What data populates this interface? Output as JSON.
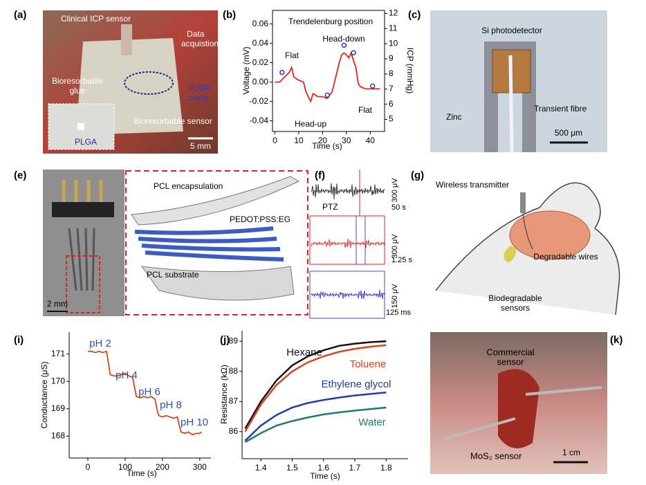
{
  "panels": {
    "a": {
      "label": "(a)",
      "texts": [
        "Clinical ICP sensor",
        "Data",
        "acquistion",
        "Bioresorbable",
        "glue",
        "PLGA",
        "cover",
        "Bioresorbable sensor",
        "PLGA",
        "5 mm"
      ]
    },
    "c": {
      "label": "(c)",
      "texts": [
        "Si photodetector",
        "Transient fibre",
        "Zinc",
        "500 μm"
      ]
    },
    "e": {
      "label": "(e)",
      "texts": [
        "PCL encapsulation",
        "PEDOT:PSS:EG",
        "PCL substrate",
        "2 mm"
      ]
    },
    "f": {
      "label": "(f)",
      "texts": [
        "PTZ",
        "300 μV",
        "50 s",
        "300 μV",
        "1.25 s",
        "150 μV",
        "125 ms"
      ]
    },
    "g": {
      "label": "(g)",
      "texts": [
        "Wireless transmitter",
        "Degradable wires",
        "Biodegradable",
        "sensors"
      ]
    },
    "k": {
      "label": "(k)",
      "texts": [
        "Commercial",
        "sensor",
        "MoS₂ sensor",
        "1 cm"
      ]
    }
  },
  "chart_data": [
    {
      "type": "line",
      "panel_label": "(b)",
      "frame": "box",
      "xlabel": "Time (s)",
      "ylabel": "Voltage (mV)",
      "y2label": "ICP (mmHg)",
      "xlim": [
        -1,
        46
      ],
      "xticks": [
        0,
        10,
        20,
        30,
        40
      ],
      "ylim": [
        -0.051,
        0.074
      ],
      "yticks": [
        -0.04,
        -0.02,
        {
          "value": 0,
          "label": "0.00"
        },
        0.02,
        0.04,
        0.06
      ],
      "y2lim": [
        4.2,
        12.2
      ],
      "y2ticks": [
        5,
        6,
        7,
        8,
        9,
        10,
        11,
        12
      ],
      "series": [
        {
          "color": "#e3241b",
          "x": [
            0,
            2,
            4,
            6,
            7,
            8,
            10,
            12,
            13,
            14,
            15,
            16,
            18,
            20,
            22,
            24,
            26,
            27,
            28,
            29,
            30,
            31,
            32,
            33,
            34,
            35,
            36,
            38,
            40,
            42,
            44
          ],
          "values": [
            0.0,
            0.0,
            0.005,
            0.01,
            0.015,
            0.005,
            0.002,
            0.0,
            -0.01,
            -0.015,
            -0.02,
            -0.012,
            -0.015,
            -0.015,
            -0.017,
            -0.01,
            0.01,
            0.02,
            0.028,
            0.03,
            0.028,
            0.025,
            0.03,
            0.022,
            0.015,
            -0.002,
            -0.005,
            -0.007,
            -0.007,
            -0.007,
            -0.007
          ]
        },
        {
          "color": "#2b3fb0",
          "axis": "y2",
          "marker": "circle",
          "x": [
            3,
            22,
            29,
            33,
            41
          ],
          "values": [
            8.1,
            6.6,
            9.9,
            9.4,
            7.2
          ]
        }
      ],
      "annotations": [
        "Trendelenburg position",
        "Flat",
        "Head-down",
        "Head-up",
        "Flat"
      ]
    },
    {
      "type": "line",
      "panel_label": "(i)",
      "frame": "axes",
      "xlabel": "Time (s)",
      "ylabel": "Conductance (μS)",
      "xlim": [
        -50,
        330
      ],
      "xticks": [
        0,
        100,
        200,
        300
      ],
      "ylim": [
        167.2,
        171.8
      ],
      "yticks": [
        168,
        169,
        170,
        171
      ],
      "series": [
        {
          "color": "#cc4a1e",
          "x": [
            0,
            10,
            20,
            30,
            40,
            50,
            55,
            60,
            70,
            80,
            90,
            100,
            110,
            120,
            125,
            130,
            140,
            150,
            160,
            170,
            180,
            185,
            190,
            200,
            210,
            220,
            230,
            240,
            245,
            250,
            260,
            270,
            280,
            290,
            300,
            305
          ],
          "values": [
            171.1,
            171.1,
            171.05,
            171.1,
            171.05,
            171.1,
            170.7,
            170.25,
            170.2,
            170.2,
            170.25,
            170.3,
            170.2,
            170.15,
            169.8,
            169.45,
            169.4,
            169.45,
            169.4,
            169.45,
            169.35,
            169.0,
            168.75,
            168.7,
            168.75,
            168.7,
            168.65,
            168.7,
            168.4,
            168.15,
            168.1,
            168.15,
            168.05,
            168.1,
            168.1,
            168.15
          ]
        }
      ],
      "annotations": [
        "pH 2",
        "pH 4",
        "pH 6",
        "pH 8",
        "pH 10"
      ]
    },
    {
      "type": "line",
      "panel_label": "(j)",
      "frame": "axes",
      "xlabel": "Time (s)",
      "ylabel": "Resistance (kΩ)",
      "xlim": [
        1.34,
        1.87
      ],
      "xticks": [
        1.4,
        1.5,
        1.6,
        1.7,
        1.8
      ],
      "ylim": [
        85.1,
        89.35
      ],
      "yticks": [
        86,
        87,
        88,
        89
      ],
      "x": [
        1.35,
        1.4,
        1.45,
        1.5,
        1.55,
        1.6,
        1.65,
        1.7,
        1.75,
        1.8
      ],
      "series": [
        {
          "name": "Hexane",
          "color": "#111111",
          "values": [
            86.1,
            87.0,
            87.7,
            88.2,
            88.5,
            88.7,
            88.85,
            88.92,
            88.97,
            89.0
          ]
        },
        {
          "name": "Toluene",
          "color": "#d9431e",
          "values": [
            86.0,
            86.9,
            87.55,
            88.0,
            88.3,
            88.5,
            88.65,
            88.75,
            88.82,
            88.87
          ]
        },
        {
          "name": "Ethylene glycol",
          "color": "#1f3fa0",
          "values": [
            85.7,
            86.2,
            86.55,
            86.8,
            86.95,
            87.05,
            87.13,
            87.2,
            87.25,
            87.3
          ]
        },
        {
          "name": "Water",
          "color": "#1e7a6a",
          "values": [
            85.65,
            85.95,
            86.2,
            86.35,
            86.47,
            86.57,
            86.64,
            86.7,
            86.75,
            86.8
          ]
        }
      ]
    }
  ]
}
